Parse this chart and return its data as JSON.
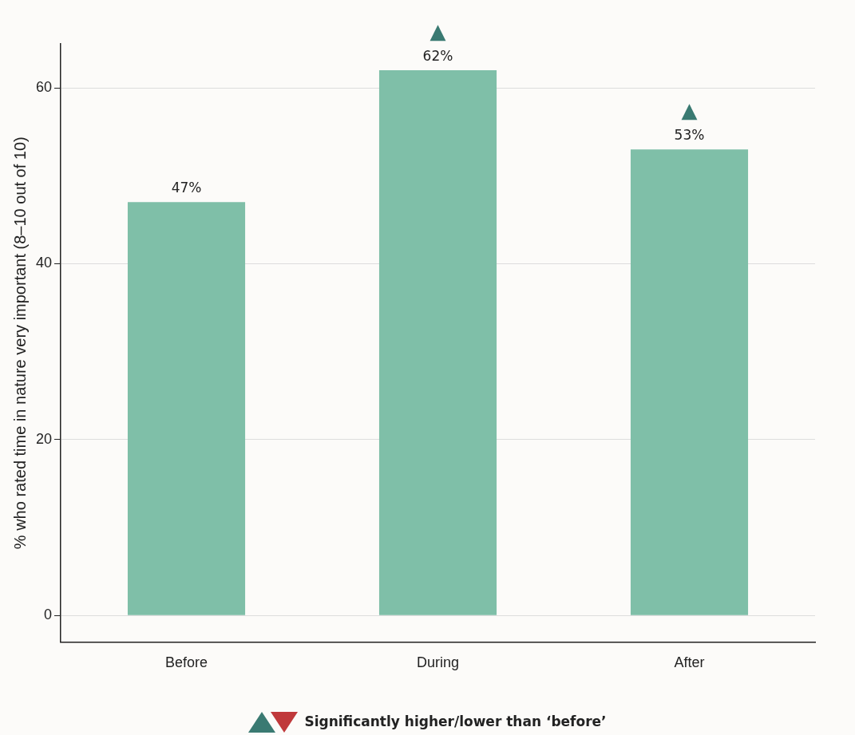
{
  "chart_data": {
    "type": "bar",
    "ylabel": "% who rated time in nature very important (8–10 out of 10)",
    "categories": [
      "Before",
      "During",
      "After"
    ],
    "values": [
      47,
      62,
      53
    ],
    "value_labels": [
      "47%",
      "62%",
      "53%"
    ],
    "color": "#7fbfa8",
    "ylim": [
      -3,
      65
    ],
    "yticks": [
      0,
      20,
      40,
      60
    ],
    "grid": "y",
    "legend": false,
    "annotations": [
      {
        "text": "▲",
        "x": "During",
        "y": 62
      },
      {
        "text": "▲",
        "x": "After",
        "y": 53
      },
      "Significantly higher/lower than ‘before’"
    ]
  }
}
